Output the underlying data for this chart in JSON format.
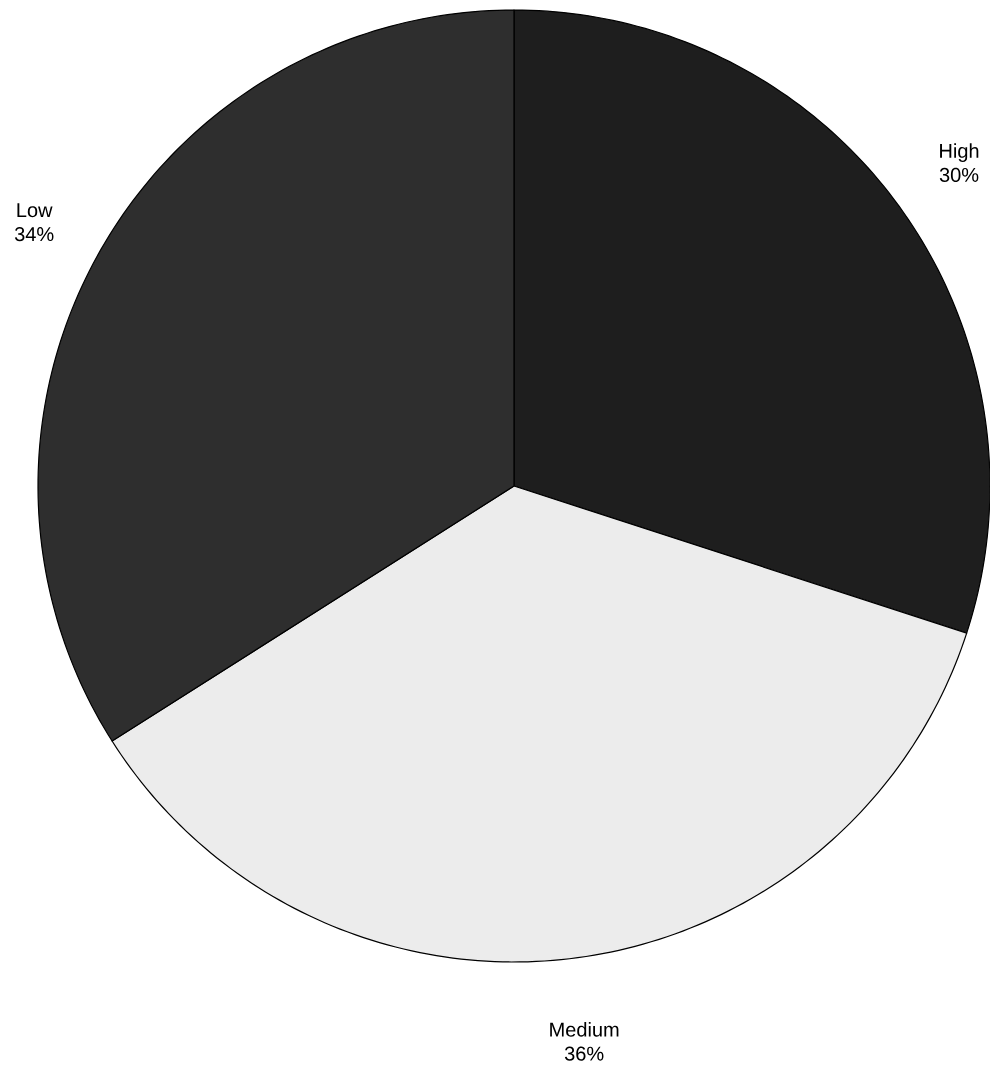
{
  "chart_data": {
    "type": "pie",
    "categories": [
      "High",
      "Medium",
      "Low"
    ],
    "values": [
      30,
      36,
      34
    ],
    "value_labels": [
      "30%",
      "36%",
      "34%"
    ],
    "colors": [
      "#1e1e1e",
      "#ececec",
      "#2e2e2e"
    ]
  }
}
